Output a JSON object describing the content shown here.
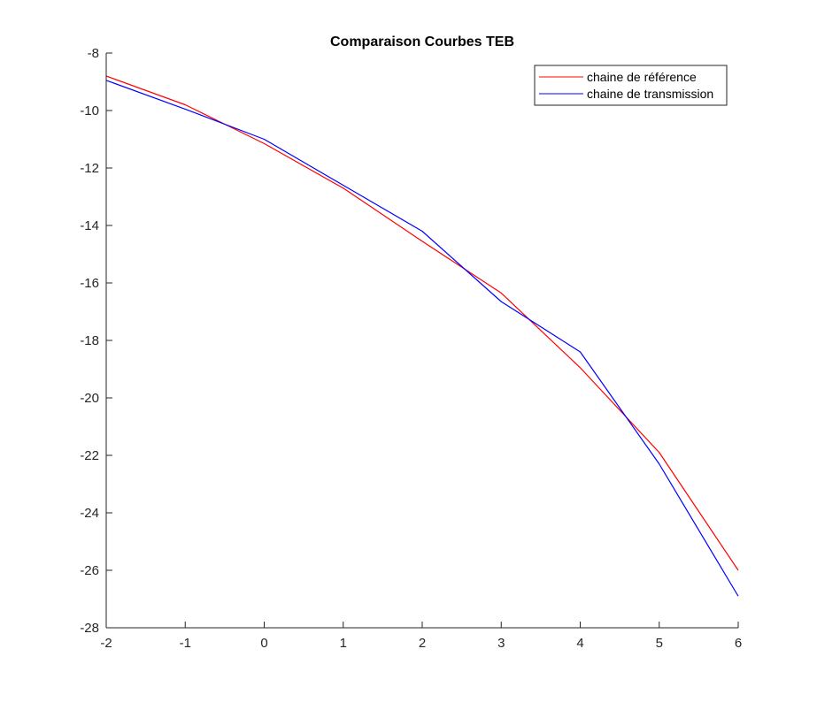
{
  "chart_data": {
    "type": "line",
    "title": "Comparaison Courbes TEB",
    "xlabel": "",
    "ylabel": "",
    "xlim": [
      -2,
      6
    ],
    "ylim": [
      -28,
      -8
    ],
    "xticks": [
      "-2",
      "-1",
      "0",
      "1",
      "2",
      "3",
      "4",
      "5",
      "6"
    ],
    "yticks": [
      "-8",
      "-10",
      "-12",
      "-14",
      "-16",
      "-18",
      "-20",
      "-22",
      "-24",
      "-26",
      "-28"
    ],
    "grid": false,
    "legend_position": "top-right",
    "x": [
      -2,
      -1,
      0,
      1,
      2,
      3,
      4,
      5,
      6
    ],
    "series": [
      {
        "name": "chaine de référence",
        "color": "#ff0000",
        "values": [
          -8.8,
          -9.8,
          -11.15,
          -12.7,
          -14.55,
          -16.35,
          -18.95,
          -21.9,
          -26.0
        ]
      },
      {
        "name": "chaine de transmission",
        "color": "#0000ff",
        "values": [
          -8.95,
          -9.95,
          -11.0,
          -12.6,
          -14.2,
          -16.65,
          -18.4,
          -22.3,
          -26.9
        ]
      }
    ]
  }
}
